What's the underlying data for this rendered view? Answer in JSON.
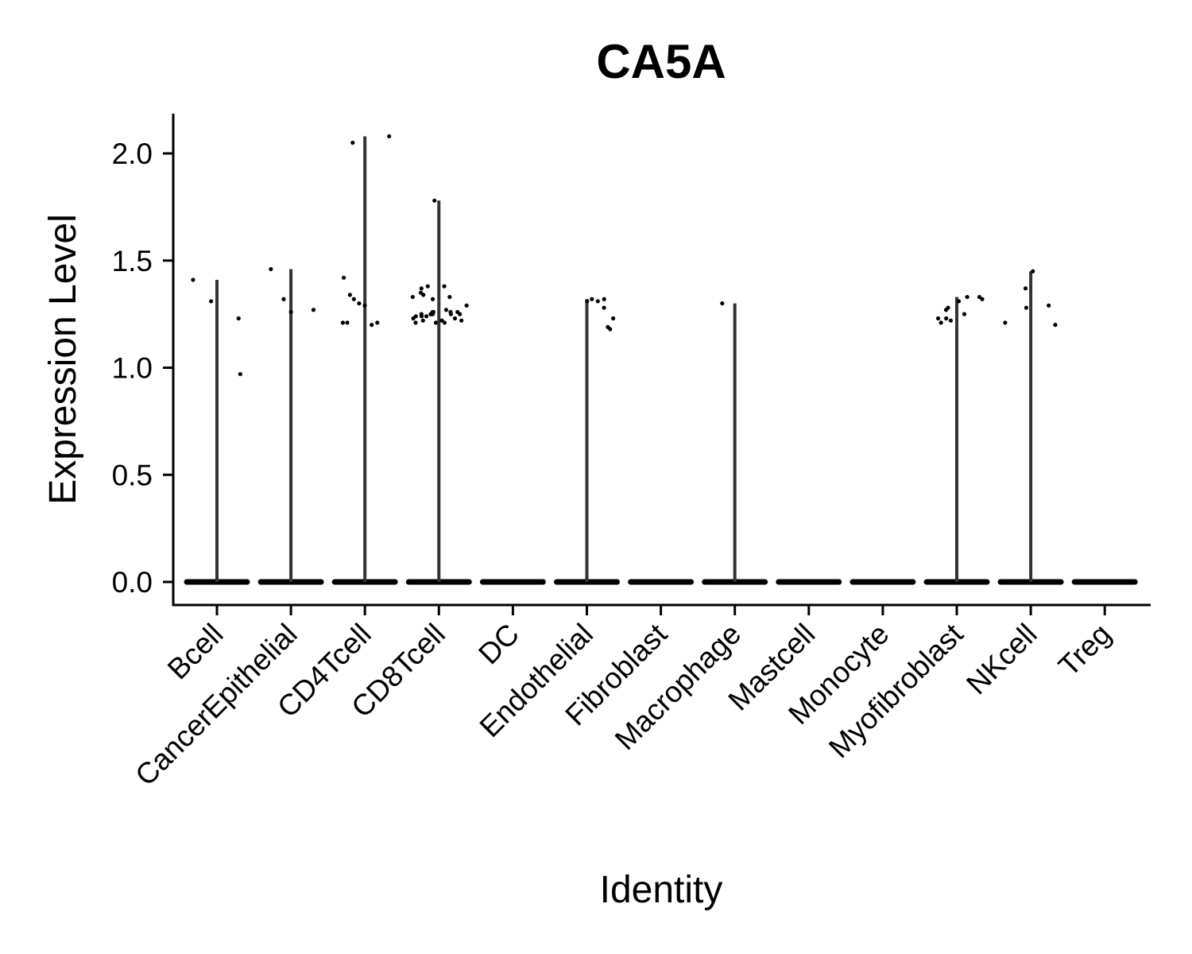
{
  "chart_data": {
    "type": "violin",
    "title": "CA5A",
    "xlabel": "Identity",
    "ylabel": "Expression Level",
    "ylim": [
      -0.1,
      2.2
    ],
    "yticks": [
      "0.0",
      "0.5",
      "1.0",
      "1.5",
      "2.0"
    ],
    "grid": false,
    "legend": "none",
    "categories": [
      "Bcell",
      "CancerEpithelial",
      "CD4Tcell",
      "CD8Tcell",
      "DC",
      "Endothelial",
      "Fibroblast",
      "Macrophage",
      "Mastcell",
      "Monocyte",
      "Myofibroblast",
      "NKcell",
      "Treg"
    ],
    "max_values": [
      1.41,
      1.46,
      2.08,
      1.78,
      0.0,
      1.32,
      0.0,
      1.3,
      0.0,
      0.0,
      1.33,
      1.45,
      0.0
    ],
    "points": [
      {
        "category": "Bcell",
        "y": [
          1.23,
          0.97,
          1.41,
          1.31
        ]
      },
      {
        "category": "CancerEpithelial",
        "y": [
          1.27,
          1.46,
          1.32,
          1.26
        ]
      },
      {
        "category": "CD4Tcell",
        "y": [
          1.2,
          1.34,
          1.42,
          2.08,
          1.3,
          1.21,
          1.29,
          2.05,
          1.21,
          1.21,
          1.32
        ]
      },
      {
        "category": "CD8Tcell",
        "y": [
          1.38,
          1.33,
          1.25,
          1.24,
          1.26,
          1.78,
          1.37,
          1.22,
          1.25,
          1.26,
          1.21,
          1.24,
          1.35,
          1.26,
          1.23,
          1.29,
          1.25,
          1.27,
          1.38,
          1.22,
          1.24,
          1.26,
          1.21,
          1.25,
          1.23,
          1.26,
          1.32,
          1.22,
          1.25,
          1.33,
          1.21,
          1.34,
          1.25
        ]
      },
      {
        "category": "Endothelial",
        "y": [
          1.28,
          1.18,
          1.19,
          1.32,
          1.31,
          1.32,
          1.31,
          1.23
        ]
      },
      {
        "category": "Macrophage",
        "y": [
          1.3
        ]
      },
      {
        "category": "Myofibroblast",
        "y": [
          1.27,
          1.23,
          1.28,
          1.25,
          1.33,
          1.21,
          1.33,
          1.32,
          1.23,
          1.31,
          1.22
        ]
      },
      {
        "category": "NKcell",
        "y": [
          1.21,
          1.2,
          1.37,
          1.29,
          1.45,
          1.28
        ]
      }
    ]
  }
}
